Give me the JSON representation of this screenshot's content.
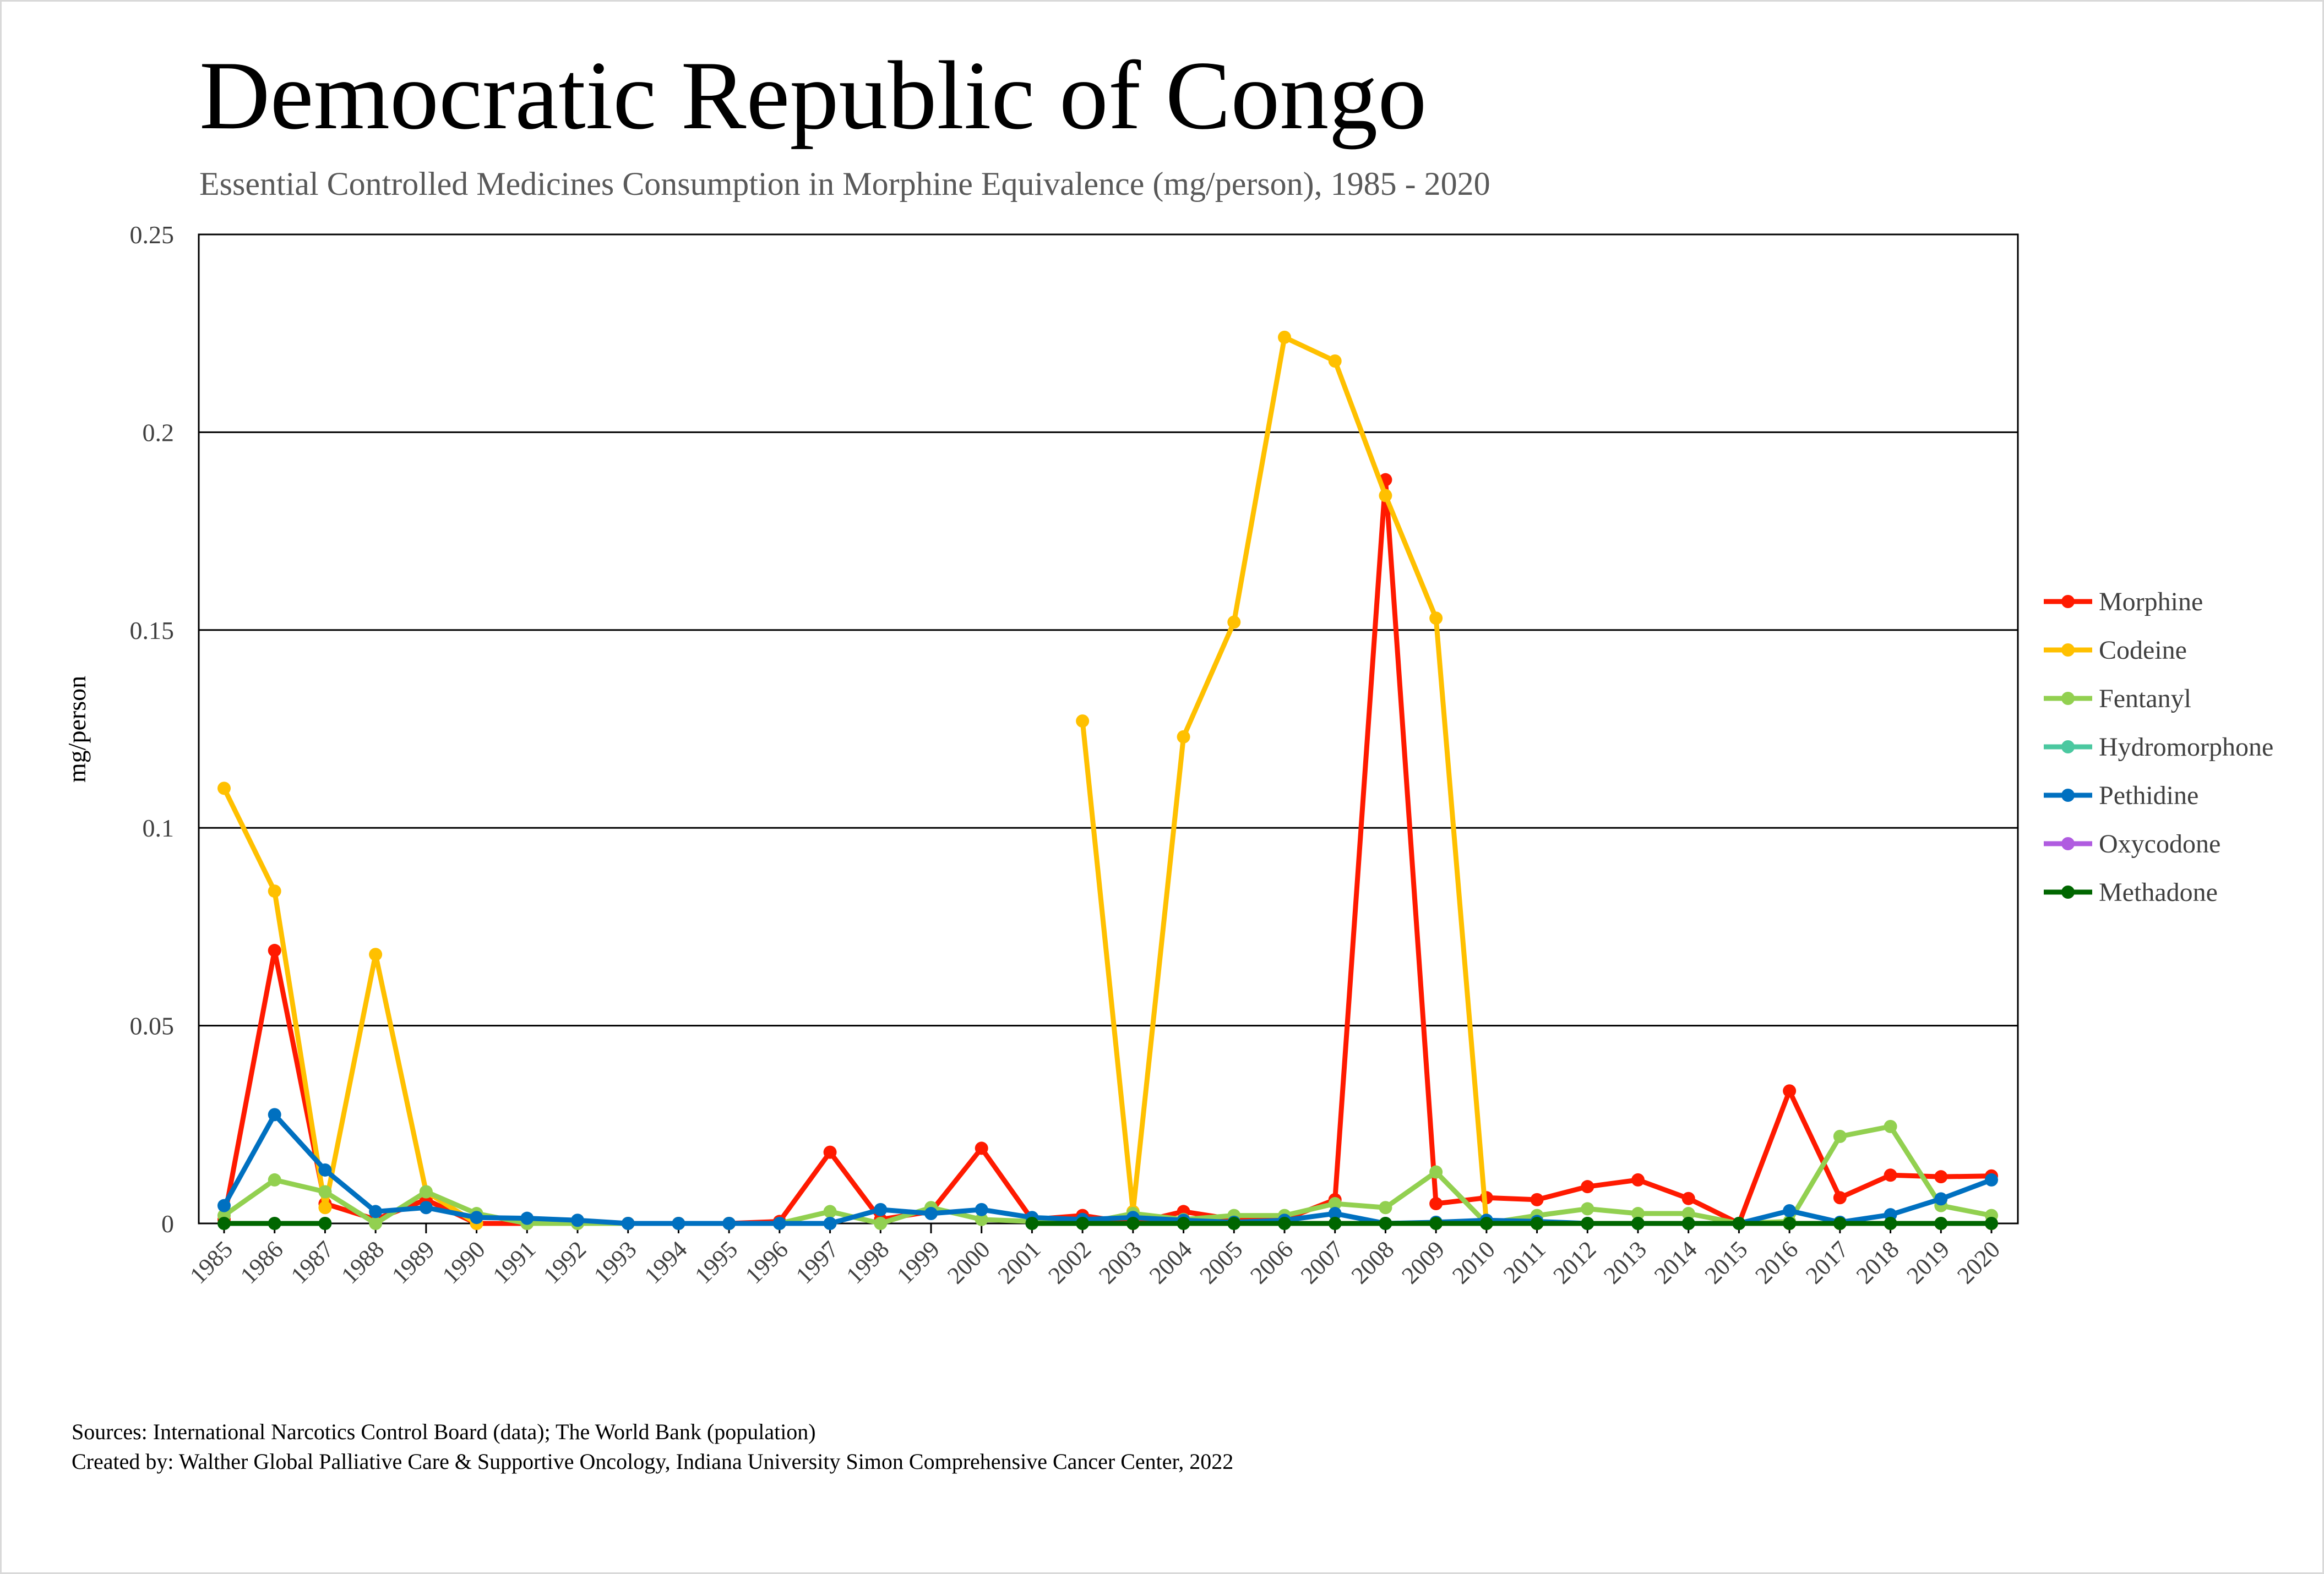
{
  "chart_data": {
    "type": "line",
    "title": "Democratic Republic of Congo",
    "subtitle": "Essential Controlled Medicines Consumption in Morphine Equivalence (mg/person), 1985 - 2020",
    "xlabel": "",
    "ylabel": "mg/person",
    "ylim": [
      0,
      0.25
    ],
    "yticks": [
      "0",
      "0.05",
      "0.1",
      "0.15",
      "0.2",
      "0.25"
    ],
    "ytick_values": [
      0,
      0.05,
      0.1,
      0.15,
      0.2,
      0.25
    ],
    "grid": true,
    "legend_position": "right",
    "x": [
      "1985",
      "1986",
      "1987",
      "1988",
      "1989",
      "1990",
      "1991",
      "1992",
      "1993",
      "1994",
      "1995",
      "1996",
      "1997",
      "1998",
      "1999",
      "2000",
      "2001",
      "2002",
      "2003",
      "2004",
      "2005",
      "2006",
      "2007",
      "2008",
      "2009",
      "2010",
      "2011",
      "2012",
      "2013",
      "2014",
      "2015",
      "2016",
      "2017",
      "2018",
      "2019",
      "2020"
    ],
    "series": [
      {
        "name": "Morphine",
        "color": "#FF1A00",
        "values": [
          0.001,
          0.069,
          0.005,
          0.001,
          0.006,
          0.0,
          0.0,
          0.0,
          0.0,
          0.0,
          0.0,
          0.0005,
          0.018,
          0.001,
          0.003,
          0.019,
          0.001,
          0.002,
          0.0,
          0.003,
          0.001,
          0.001,
          0.006,
          0.188,
          0.005,
          0.0065,
          0.006,
          0.0093,
          0.011,
          0.0063,
          0.0,
          0.0335,
          0.0065,
          0.0122,
          0.0118,
          0.012
        ]
      },
      {
        "name": "Codeine",
        "color": "#FFC000",
        "values": [
          0.11,
          0.084,
          0.004,
          0.068,
          0.008,
          0.0,
          null,
          null,
          null,
          null,
          null,
          null,
          null,
          null,
          null,
          null,
          null,
          0.127,
          0.003,
          0.123,
          0.152,
          0.224,
          0.218,
          0.184,
          0.153,
          0.0,
          0.0,
          0.0,
          0.0,
          0.0,
          0.0,
          0.0,
          0.0,
          0.0,
          0.0,
          0.0
        ]
      },
      {
        "name": "Fentanyl",
        "color": "#92D050",
        "values": [
          0.002,
          0.011,
          0.008,
          0.0,
          0.008,
          0.0025,
          0.0,
          0.0,
          0.0,
          0.0,
          0.0,
          0.0,
          0.003,
          0.0,
          0.004,
          0.001,
          0.0005,
          0.0,
          0.0025,
          0.001,
          0.002,
          0.002,
          0.005,
          0.004,
          0.013,
          0.0,
          0.002,
          0.0037,
          0.0025,
          0.0025,
          0.0,
          0.0005,
          0.022,
          0.0245,
          0.0045,
          0.002
        ]
      },
      {
        "name": "Hydromorphone",
        "color": "#4BC8A0",
        "values": [
          null,
          null,
          null,
          null,
          null,
          null,
          null,
          null,
          null,
          null,
          null,
          null,
          null,
          null,
          null,
          null,
          null,
          null,
          null,
          null,
          null,
          null,
          null,
          null,
          null,
          null,
          null,
          null,
          null,
          null,
          null,
          null,
          null,
          null,
          null,
          null
        ]
      },
      {
        "name": "Pethidine",
        "color": "#0070C0",
        "values": [
          0.0045,
          0.0275,
          0.0135,
          0.003,
          0.004,
          0.0015,
          0.0013,
          0.0008,
          0.0,
          0.0,
          0.0,
          0.0,
          0.0,
          0.0035,
          0.0025,
          0.0035,
          0.0015,
          0.001,
          0.0015,
          0.0008,
          0.0003,
          0.0008,
          0.0025,
          0.0,
          0.0003,
          0.0008,
          0.0005,
          0.0,
          0.0,
          0.0,
          0.0,
          0.0032,
          0.0003,
          0.0022,
          0.0062,
          0.011
        ]
      },
      {
        "name": "Oxycodone",
        "color": "#B05CE0",
        "values": [
          null,
          null,
          null,
          null,
          null,
          null,
          null,
          null,
          null,
          null,
          null,
          null,
          null,
          null,
          null,
          null,
          null,
          null,
          null,
          null,
          null,
          null,
          null,
          null,
          null,
          null,
          null,
          null,
          null,
          null,
          null,
          null,
          null,
          null,
          null,
          null
        ]
      },
      {
        "name": "Methadone",
        "color": "#006600",
        "values": [
          0,
          0,
          0,
          null,
          null,
          null,
          null,
          null,
          null,
          null,
          null,
          null,
          null,
          null,
          null,
          null,
          0,
          0,
          0,
          0,
          0,
          0,
          0,
          0,
          0,
          0,
          0,
          0,
          0,
          0,
          0,
          0,
          0,
          0,
          0,
          0
        ]
      }
    ]
  },
  "footer": {
    "sources": "Sources: International Narcotics Control Board (data); The World Bank (population)",
    "created_by": "Created by: Walther Global Palliative Care & Supportive Oncology, Indiana University Simon Comprehensive Cancer Center, 2022"
  }
}
